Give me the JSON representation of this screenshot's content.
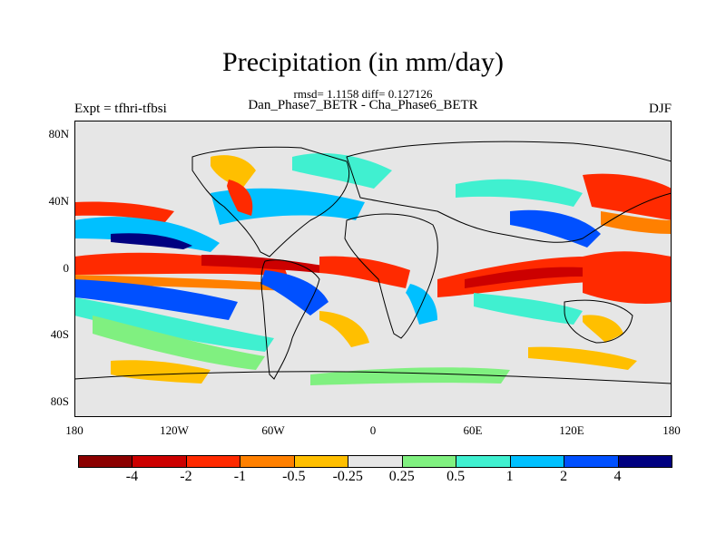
{
  "title": "Precipitation (in mm/day)",
  "stats": "rmsd= 1.1158 diff= 0.127126",
  "subtitle": "Dan_Phase7_BETR - Cha_Phase6_BETR",
  "left_label": "Expt = tfhri-tfbsi",
  "right_label": "DJF",
  "y_ticks": [
    "80N",
    "40N",
    "0",
    "40S",
    "80S"
  ],
  "x_ticks": [
    "180",
    "120W",
    "60W",
    "0",
    "60E",
    "120E",
    "180"
  ],
  "colorbar": {
    "colors": [
      "#8b0000",
      "#cc0000",
      "#ff2a00",
      "#ff8000",
      "#ffbf00",
      "#e6e6e6",
      "#80f080",
      "#40f0d0",
      "#00c0ff",
      "#0050ff",
      "#000080"
    ],
    "labels": [
      "-4",
      "-2",
      "-1",
      "-0.5",
      "-0.25",
      "0.25",
      "0.5",
      "1",
      "2",
      "4"
    ]
  }
}
